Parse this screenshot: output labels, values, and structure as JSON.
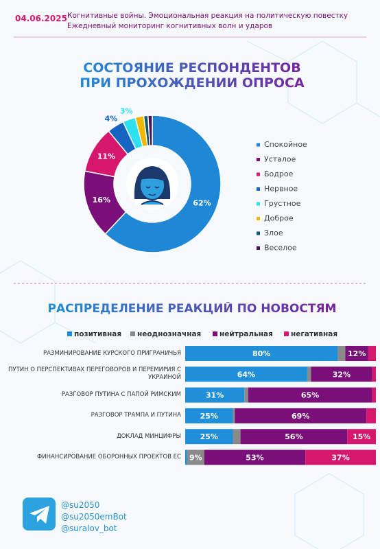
{
  "header": {
    "date": "04.06.2025",
    "line1": "Когнитивные войны. Эмоциональная реакция на политическую повестку",
    "line2": "Ежедневный мониторинг когнитивных волн и ударов"
  },
  "chart_data": [
    {
      "type": "donut",
      "title": "СОСТОЯНИЕ РЕСПОНДЕНТОВ ПРИ ПРОХОЖДЕНИИ ОПРОСА",
      "categories": [
        "Спокойное",
        "Усталое",
        "Бодрое",
        "Нервное",
        "Грустное",
        "Доброе",
        "Злое",
        "Веселое"
      ],
      "values": [
        62,
        16,
        11,
        4,
        3,
        2,
        1,
        1
      ],
      "value_labels": [
        "62%",
        "16%",
        "11%",
        "4%",
        "3%",
        null,
        null,
        null
      ],
      "colors": [
        "#1e88d6",
        "#7a0f7a",
        "#d6176e",
        "#1565c0",
        "#2ee0f0",
        "#f0b800",
        "#0d5a6e",
        "#4a0f5a"
      ]
    },
    {
      "type": "stacked-bar",
      "title": "РАСПРЕДЕЛЕНИЕ РЕАКЦИЙ ПО НОВОСТЯМ",
      "categories": [
        "РАЗМИНИРОВАНИЕ КУРСКОГО ПРИГРАНИЧЬЯ",
        "ПУТИН О ПЕРСПЕКТИВАХ ПЕРЕГОВОРОВ И ПЕРЕМИРИЯ С УКРАИНОЙ",
        "РАЗГОВОР ПУТИНА С ПАПОЙ РИМСКИМ",
        "РАЗГОВОР ТРАМПА И ПУТИНА",
        "ДОКЛАД МИНЦИФРЫ",
        "ФИНАНСИРОВАНИЕ ОБОРОННЫХ ПРОЕКТОВ ЕС"
      ],
      "xlim": [
        0,
        100
      ],
      "series": [
        {
          "name": "позитивная",
          "color": "#1e8fd8",
          "values": [
            80,
            64,
            31,
            25,
            25,
            1
          ],
          "value_labels": [
            "80%",
            "64%",
            "31%",
            "25%",
            "25%",
            null
          ]
        },
        {
          "name": "неоднозначная",
          "color": "#8a8a8a",
          "values": [
            4,
            2,
            2,
            1,
            4,
            9
          ],
          "value_labels": [
            null,
            null,
            null,
            null,
            null,
            "9%"
          ]
        },
        {
          "name": "нейтральная",
          "color": "#7a0f7a",
          "values": [
            12,
            32,
            65,
            69,
            56,
            53
          ],
          "value_labels": [
            "12%",
            "32%",
            "65%",
            "69%",
            "56%",
            "53%"
          ]
        },
        {
          "name": "негативная",
          "color": "#d6176e",
          "values": [
            4,
            2,
            2,
            5,
            15,
            37
          ],
          "value_labels": [
            null,
            null,
            null,
            null,
            "15%",
            "37%"
          ]
        }
      ]
    }
  ],
  "footer": {
    "handles": [
      "@su2050",
      "@su2050emBot",
      "@suralov_bot"
    ]
  }
}
